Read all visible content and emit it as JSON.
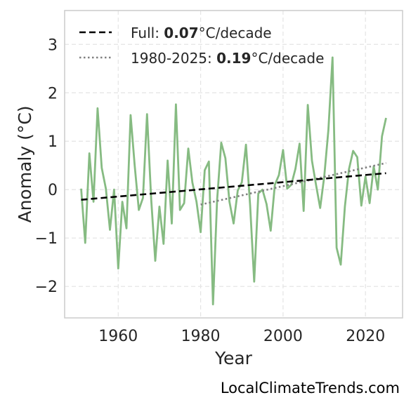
{
  "chart_data": {
    "type": "line",
    "xlabel": "Year",
    "ylabel": "Anomaly (°C)",
    "xlim": [
      1947,
      2029
    ],
    "ylim": [
      -2.65,
      3.7
    ],
    "xticks": [
      1960,
      1980,
      2000,
      2020
    ],
    "yticks": [
      -2,
      -1,
      0,
      1,
      2,
      3
    ],
    "ytick_labels": [
      "−2",
      "−1",
      "0",
      "1",
      "2",
      "3"
    ],
    "grid": true,
    "legend_position": "top-left",
    "colors": {
      "anomaly": "#86bb82",
      "trend_full": "#000000",
      "trend_recent": "#808080",
      "grid": "#e4e4e4",
      "frame": "#cccccc"
    },
    "series": [
      {
        "kind": "anomaly",
        "x": [
          1951,
          1952,
          1953,
          1954,
          1955,
          1956,
          1957,
          1958,
          1959,
          1960,
          1961,
          1962,
          1963,
          1964,
          1965,
          1966,
          1967,
          1968,
          1969,
          1970,
          1971,
          1972,
          1973,
          1974,
          1975,
          1976,
          1977,
          1978,
          1979,
          1980,
          1981,
          1982,
          1983,
          1984,
          1985,
          1986,
          1987,
          1988,
          1989,
          1990,
          1991,
          1992,
          1993,
          1994,
          1995,
          1996,
          1997,
          1998,
          1999,
          2000,
          2001,
          2002,
          2003,
          2004,
          2005,
          2006,
          2007,
          2008,
          2009,
          2010,
          2011,
          2012,
          2013,
          2014,
          2015,
          2016,
          2017,
          2018,
          2019,
          2020,
          2021,
          2022,
          2023,
          2024,
          2025
        ],
        "y": [
          0.02,
          -1.1,
          0.75,
          -0.25,
          1.68,
          0.45,
          0.02,
          -0.83,
          0.0,
          -1.63,
          -0.25,
          -0.8,
          1.54,
          0.5,
          -0.42,
          -0.17,
          1.56,
          -0.2,
          -1.47,
          -0.35,
          -1.12,
          0.6,
          -0.7,
          1.76,
          -0.42,
          -0.28,
          0.85,
          0.15,
          -0.25,
          -0.88,
          0.4,
          0.58,
          -2.37,
          -0.22,
          0.97,
          0.65,
          -0.25,
          -0.7,
          -0.02,
          0.15,
          0.93,
          -0.32,
          -1.9,
          -0.08,
          0.0,
          -0.3,
          -0.85,
          0.1,
          0.3,
          0.82,
          0.02,
          0.1,
          0.43,
          0.95,
          -0.44,
          1.75,
          0.6,
          0.1,
          -0.38,
          0.27,
          1.23,
          2.73,
          -1.2,
          -1.55,
          -0.35,
          0.42,
          0.8,
          0.67,
          -0.33,
          0.27,
          -0.28,
          0.48,
          0.0,
          1.1,
          1.48
        ]
      },
      {
        "kind": "trend_full",
        "name": "Full",
        "x": [
          1951,
          2025
        ],
        "y": [
          -0.21,
          0.34
        ]
      },
      {
        "kind": "trend_recent",
        "name": "1980-2025",
        "x": [
          1980,
          2025
        ],
        "y": [
          -0.31,
          0.55
        ]
      }
    ],
    "legend": [
      {
        "prefix": "Full: ",
        "value": "0.07",
        "suffix": "°C/decade",
        "style": "dashed"
      },
      {
        "prefix": "1980-2025: ",
        "value": "0.19",
        "suffix": "°C/decade",
        "style": "dotted"
      }
    ]
  },
  "credit": "LocalClimateTrends.com"
}
